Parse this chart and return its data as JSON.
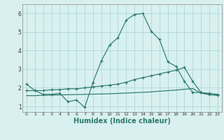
{
  "bg_color": "#d8f0f0",
  "line_color": "#2d7a6a",
  "grid_color": "#b0d8d8",
  "xlabel": "Humidex (Indice chaleur)",
  "xlabel_fontsize": 7,
  "ylim": [
    0.7,
    6.5
  ],
  "xlim": [
    -0.5,
    23.5
  ],
  "yticks": [
    1,
    2,
    3,
    4,
    5,
    6
  ],
  "xticks": [
    0,
    1,
    2,
    3,
    4,
    5,
    6,
    7,
    8,
    9,
    10,
    11,
    12,
    13,
    14,
    15,
    16,
    17,
    18,
    19,
    20,
    21,
    22,
    23
  ],
  "line1_x": [
    0,
    1,
    2,
    3,
    4,
    5,
    6,
    7,
    8,
    9,
    10,
    11,
    12,
    13,
    14,
    15,
    16,
    17,
    18,
    19,
    20,
    21,
    22,
    23
  ],
  "line1_y": [
    2.2,
    1.85,
    1.65,
    1.65,
    1.7,
    1.25,
    1.35,
    0.95,
    2.3,
    3.45,
    4.3,
    4.7,
    5.65,
    5.95,
    6.0,
    5.05,
    4.6,
    3.4,
    3.15,
    2.35,
    1.75,
    1.75,
    1.65,
    1.6
  ],
  "line2_x": [
    0,
    1,
    2,
    3,
    4,
    5,
    6,
    7,
    8,
    9,
    10,
    11,
    12,
    13,
    14,
    15,
    16,
    17,
    18,
    19,
    20,
    21,
    22,
    23
  ],
  "line2_y": [
    1.85,
    1.85,
    1.85,
    1.9,
    1.9,
    1.95,
    1.95,
    2.0,
    2.05,
    2.1,
    2.15,
    2.2,
    2.3,
    2.45,
    2.55,
    2.65,
    2.75,
    2.85,
    2.95,
    3.1,
    2.35,
    1.75,
    1.7,
    1.65
  ],
  "line3_x": [
    0,
    1,
    2,
    3,
    4,
    5,
    6,
    7,
    8,
    9,
    10,
    11,
    12,
    13,
    14,
    15,
    16,
    17,
    18,
    19,
    20,
    21,
    22,
    23
  ],
  "line3_y": [
    1.58,
    1.58,
    1.6,
    1.61,
    1.62,
    1.63,
    1.64,
    1.65,
    1.66,
    1.67,
    1.68,
    1.7,
    1.72,
    1.74,
    1.76,
    1.78,
    1.82,
    1.85,
    1.88,
    1.92,
    1.96,
    1.72,
    1.63,
    1.6
  ]
}
